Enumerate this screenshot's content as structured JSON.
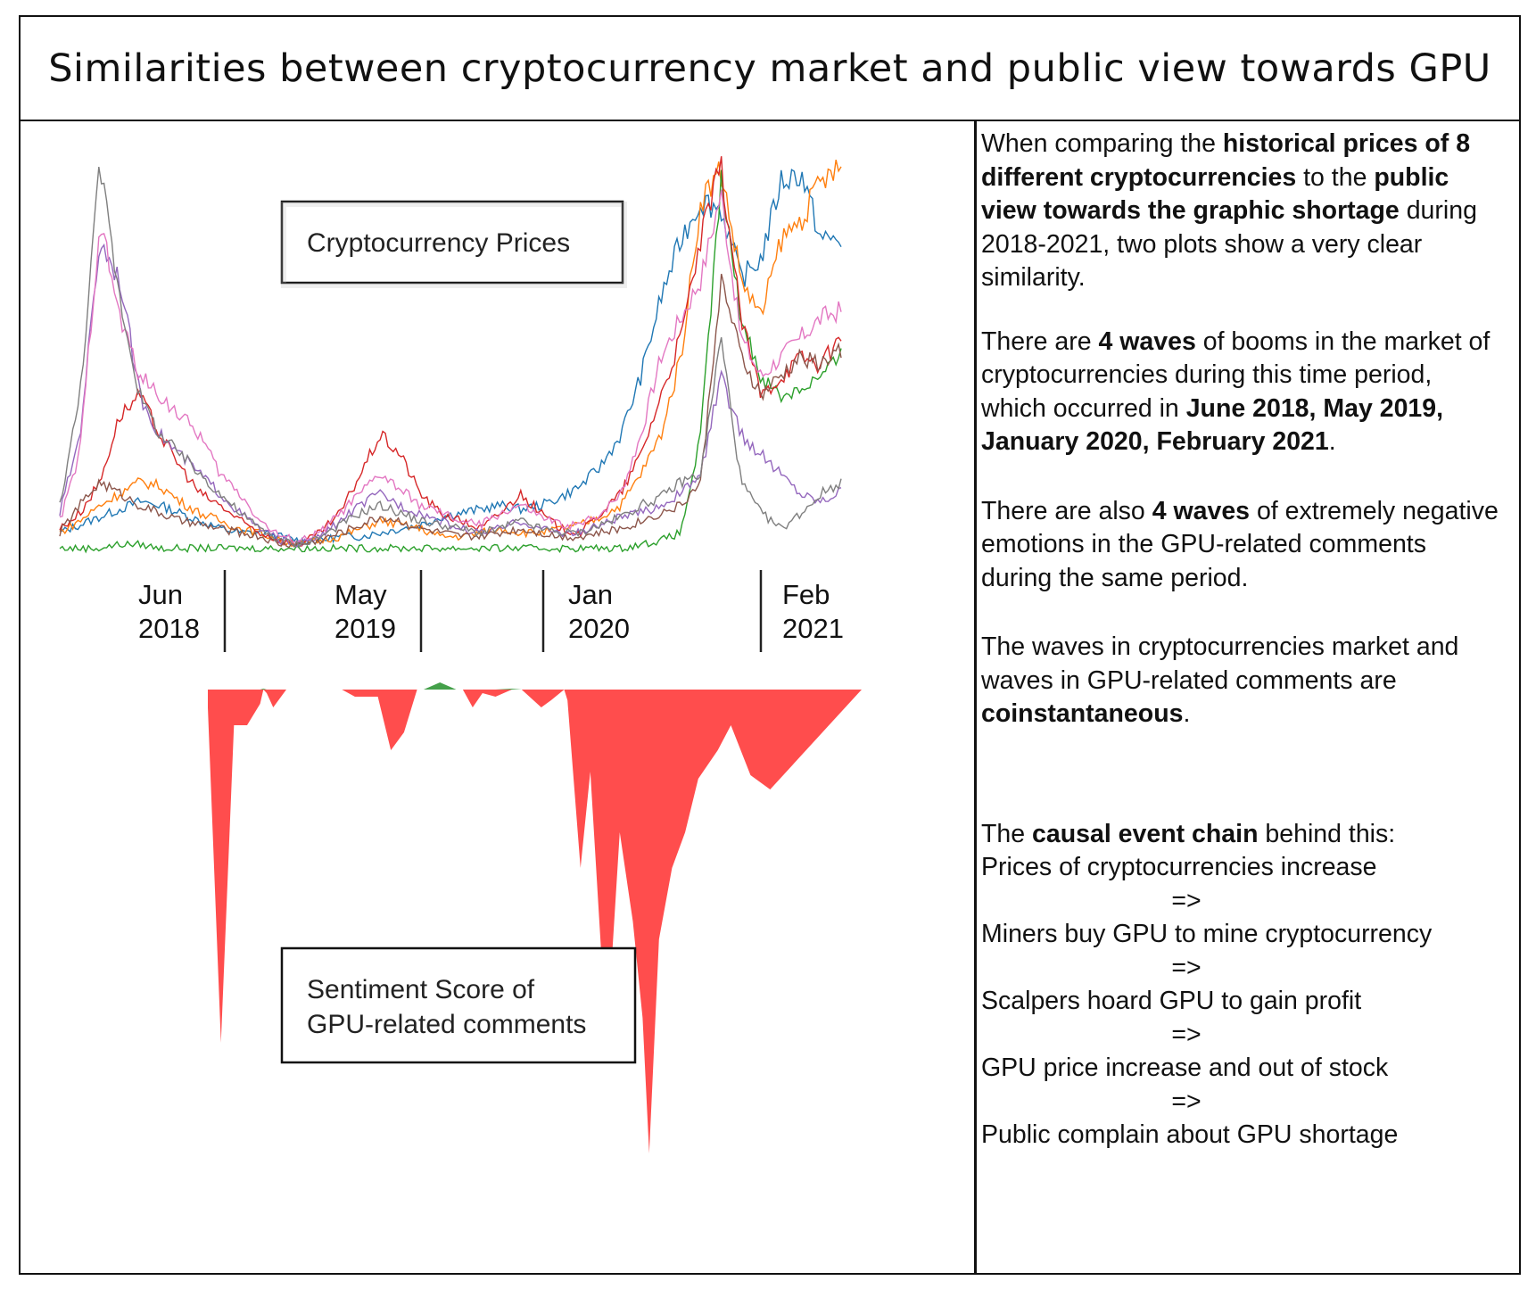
{
  "title": "Similarities between cryptocurrency market and public view towards GPU",
  "colors": {
    "negative": "#ff4d4d",
    "positive": "#44a04a",
    "series": [
      "#1f77b4",
      "#ff7f0e",
      "#2ca02c",
      "#d62728",
      "#9467bd",
      "#8c564b",
      "#e377c2",
      "#7f7f7f"
    ]
  },
  "panel": {
    "p1": [
      {
        "t": "When comparing the "
      },
      {
        "t": "historical prices of 8 different cryptocurrencies",
        "b": true
      },
      {
        "t": " to the "
      },
      {
        "t": "public view towards the graphic shortage",
        "b": true
      },
      {
        "t": " during 2018-2021, two plots show a very clear similarity."
      }
    ],
    "p2": [
      {
        "t": "There are "
      },
      {
        "t": "4 waves",
        "b": true
      },
      {
        "t": " of booms in the market of cryptocurrencies during this time period, which occurred in "
      },
      {
        "t": "June 2018, May 2019, January 2020, February 2021",
        "b": true
      },
      {
        "t": "."
      }
    ],
    "p3": [
      {
        "t": "There are also "
      },
      {
        "t": "4 waves",
        "b": true
      },
      {
        "t": " of extremely negative emotions in the GPU-related comments during the same period."
      }
    ],
    "p4": [
      {
        "t": "The waves in cryptocurrencies market and waves in GPU-related comments are "
      },
      {
        "t": "coinstantaneous",
        "b": true
      },
      {
        "t": "."
      }
    ],
    "chain_intro": [
      {
        "t": "The "
      },
      {
        "t": "causal event chain",
        "b": true
      },
      {
        "t": " behind this:"
      }
    ],
    "chain": [
      "Prices of cryptocurrencies increase",
      "Miners buy GPU to mine cryptocurrency",
      "Scalpers hoard GPU to gain profit",
      "GPU price increase and out of stock",
      "Public complain about GPU shortage"
    ],
    "arrow": "=>"
  },
  "chart_data": [
    {
      "type": "line",
      "legend_label": "Cryptocurrency Prices",
      "x_markers": [
        {
          "line1": "Jun",
          "line2": "2018"
        },
        {
          "line1": "May",
          "line2": "2019"
        },
        {
          "line1": "Jan",
          "line2": "2020"
        },
        {
          "line1": "Feb",
          "line2": "2021"
        }
      ],
      "x_range": [
        "2018-01",
        "2021-05"
      ],
      "series_relative": [
        [
          0.05,
          0.07,
          0.09,
          0.11,
          0.13,
          0.12,
          0.1,
          0.08,
          0.06,
          0.05,
          0.05,
          0.04,
          0.03,
          0.03,
          0.04,
          0.04,
          0.05,
          0.06,
          0.07,
          0.09,
          0.1,
          0.11,
          0.12,
          0.11,
          0.12,
          0.14,
          0.17,
          0.22,
          0.3,
          0.45,
          0.65,
          0.8,
          0.9,
          0.88,
          0.7,
          0.75,
          0.95,
          0.97,
          0.8,
          0.8
        ],
        [
          0.05,
          0.08,
          0.12,
          0.15,
          0.18,
          0.17,
          0.13,
          0.1,
          0.08,
          0.06,
          0.05,
          0.03,
          0.02,
          0.03,
          0.04,
          0.06,
          0.08,
          0.07,
          0.06,
          0.04,
          0.04,
          0.05,
          0.06,
          0.05,
          0.05,
          0.06,
          0.07,
          0.09,
          0.12,
          0.2,
          0.3,
          0.5,
          0.9,
          0.98,
          0.7,
          0.6,
          0.8,
          0.85,
          0.95,
          0.98
        ],
        [
          0.01,
          0.01,
          0.01,
          0.02,
          0.02,
          0.01,
          0.01,
          0.01,
          0.01,
          0.01,
          0.01,
          0.01,
          0.01,
          0.01,
          0.01,
          0.01,
          0.01,
          0.01,
          0.01,
          0.01,
          0.01,
          0.01,
          0.01,
          0.01,
          0.01,
          0.01,
          0.01,
          0.01,
          0.01,
          0.02,
          0.03,
          0.05,
          0.3,
          0.95,
          0.6,
          0.45,
          0.4,
          0.42,
          0.45,
          0.5
        ],
        [
          0.06,
          0.1,
          0.18,
          0.35,
          0.4,
          0.3,
          0.22,
          0.15,
          0.12,
          0.08,
          0.05,
          0.03,
          0.02,
          0.05,
          0.1,
          0.2,
          0.3,
          0.25,
          0.15,
          0.1,
          0.08,
          0.06,
          0.1,
          0.15,
          0.1,
          0.06,
          0.05,
          0.1,
          0.15,
          0.25,
          0.4,
          0.55,
          0.8,
          0.99,
          0.6,
          0.4,
          0.45,
          0.5,
          0.48,
          0.55
        ],
        [
          0.1,
          0.3,
          0.8,
          0.7,
          0.4,
          0.3,
          0.25,
          0.2,
          0.15,
          0.1,
          0.06,
          0.03,
          0.02,
          0.04,
          0.08,
          0.12,
          0.15,
          0.12,
          0.1,
          0.08,
          0.06,
          0.05,
          0.06,
          0.08,
          0.06,
          0.05,
          0.05,
          0.07,
          0.09,
          0.1,
          0.12,
          0.15,
          0.2,
          0.45,
          0.3,
          0.25,
          0.2,
          0.15,
          0.13,
          0.16
        ],
        [
          0.05,
          0.12,
          0.18,
          0.15,
          0.12,
          0.1,
          0.08,
          0.07,
          0.06,
          0.05,
          0.04,
          0.02,
          0.02,
          0.03,
          0.05,
          0.07,
          0.09,
          0.08,
          0.06,
          0.05,
          0.04,
          0.04,
          0.05,
          0.06,
          0.05,
          0.04,
          0.04,
          0.05,
          0.06,
          0.08,
          0.1,
          0.12,
          0.18,
          0.7,
          0.5,
          0.4,
          0.45,
          0.5,
          0.48,
          0.52
        ],
        [
          0.08,
          0.25,
          0.85,
          0.6,
          0.45,
          0.4,
          0.35,
          0.3,
          0.2,
          0.15,
          0.08,
          0.04,
          0.03,
          0.05,
          0.1,
          0.15,
          0.2,
          0.16,
          0.12,
          0.1,
          0.08,
          0.07,
          0.1,
          0.12,
          0.09,
          0.07,
          0.07,
          0.1,
          0.15,
          0.3,
          0.5,
          0.6,
          0.7,
          0.92,
          0.55,
          0.45,
          0.5,
          0.55,
          0.6,
          0.62
        ],
        [
          0.12,
          0.4,
          0.99,
          0.65,
          0.4,
          0.3,
          0.25,
          0.2,
          0.15,
          0.1,
          0.06,
          0.03,
          0.02,
          0.04,
          0.07,
          0.1,
          0.12,
          0.1,
          0.08,
          0.07,
          0.06,
          0.05,
          0.06,
          0.08,
          0.06,
          0.05,
          0.05,
          0.07,
          0.09,
          0.12,
          0.14,
          0.18,
          0.2,
          0.55,
          0.18,
          0.1,
          0.06,
          0.1,
          0.15,
          0.18
        ]
      ]
    },
    {
      "type": "area",
      "legend_label_line1": "Sentiment Score of",
      "legend_label_line2": "GPU-related comments",
      "baseline": 0,
      "values": [
        [
          0,
          0
        ],
        [
          0.0,
          -0.05
        ],
        [
          0.02,
          -0.99
        ],
        [
          0.04,
          -0.1
        ],
        [
          0.06,
          -0.1
        ],
        [
          0.08,
          -0.04
        ],
        [
          0.085,
          0.01
        ],
        [
          0.09,
          -0.01
        ],
        [
          0.1,
          -0.05
        ],
        [
          0.12,
          0.0
        ],
        [
          0.205,
          0.0
        ],
        [
          0.225,
          -0.02
        ],
        [
          0.26,
          -0.02
        ],
        [
          0.28,
          -0.17
        ],
        [
          0.3,
          -0.12
        ],
        [
          0.32,
          0.0
        ],
        [
          0.33,
          0.0
        ],
        [
          0.355,
          0.08
        ],
        [
          0.38,
          0.0
        ],
        [
          0.39,
          0.0
        ],
        [
          0.405,
          -0.05
        ],
        [
          0.42,
          -0.01
        ],
        [
          0.44,
          -0.02
        ],
        [
          0.465,
          0.01
        ],
        [
          0.48,
          0.0
        ],
        [
          0.51,
          -0.05
        ],
        [
          0.525,
          -0.03
        ],
        [
          0.545,
          0.0
        ],
        [
          0.55,
          -0.03
        ],
        [
          0.57,
          -0.5
        ],
        [
          0.585,
          -0.23
        ],
        [
          0.61,
          -0.99
        ],
        [
          0.63,
          -0.4
        ],
        [
          0.65,
          -0.65
        ],
        [
          0.665,
          -0.92
        ],
        [
          0.675,
          -1.3
        ],
        [
          0.69,
          -0.7
        ],
        [
          0.71,
          -0.5
        ],
        [
          0.73,
          -0.4
        ],
        [
          0.75,
          -0.25
        ],
        [
          0.78,
          -0.17
        ],
        [
          0.8,
          -0.1
        ],
        [
          0.83,
          -0.24
        ],
        [
          0.86,
          -0.28
        ],
        [
          1.0,
          0.0
        ]
      ]
    }
  ]
}
